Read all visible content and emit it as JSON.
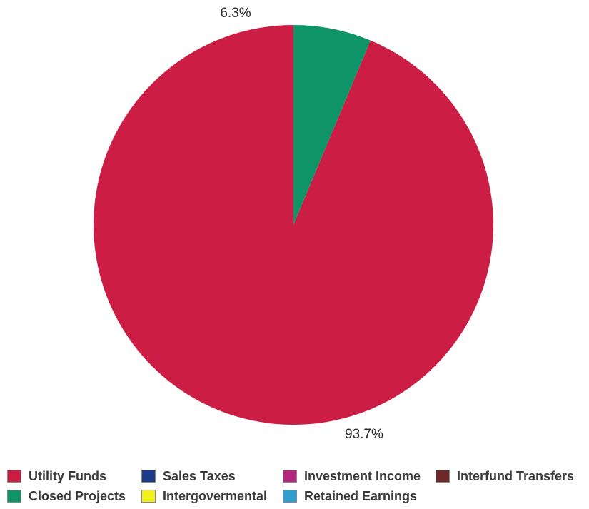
{
  "chart_data": {
    "type": "pie",
    "title": "",
    "slices": [
      {
        "label": "Utility Funds",
        "value": 93.7,
        "value_label": "93.7%",
        "color": "#cc1e44"
      },
      {
        "label": "Closed Projects",
        "value": 6.3,
        "value_label": "6.3%",
        "color": "#0f9468"
      }
    ],
    "legend": {
      "placement": "bottom",
      "entries": [
        {
          "label": "Utility Funds",
          "color": "#cc1e44"
        },
        {
          "label": "Sales Taxes",
          "color": "#1b3a8c"
        },
        {
          "label": "Investment Income",
          "color": "#b5277e"
        },
        {
          "label": "Interfund Transfers",
          "color": "#6e2a2a"
        },
        {
          "label": "Closed Projects",
          "color": "#0f9468"
        },
        {
          "label": "Intergovermental",
          "color": "#f2f21a"
        },
        {
          "label": "Retained Earnings",
          "color": "#2f9fd1"
        }
      ]
    }
  }
}
